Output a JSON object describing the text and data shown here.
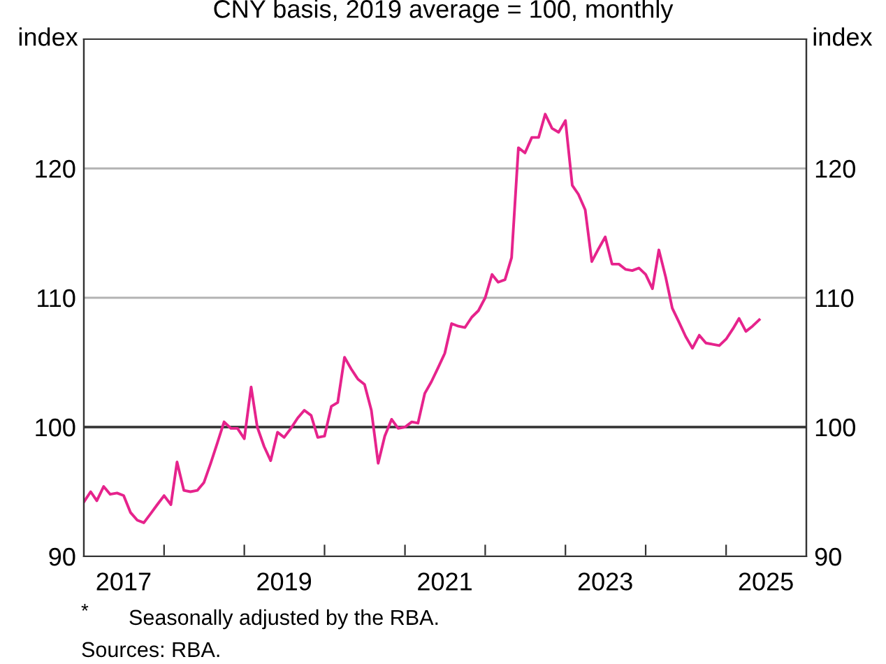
{
  "chart_data": {
    "type": "line",
    "subtitle": "CNY basis, 2019 average = 100, monthly",
    "ylabel": "index",
    "y2label": "index",
    "x": [
      "2017-01",
      "2017-02",
      "2017-03",
      "2017-04",
      "2017-05",
      "2017-06",
      "2017-07",
      "2017-08",
      "2017-09",
      "2017-10",
      "2017-11",
      "2017-12",
      "2018-01",
      "2018-02",
      "2018-03",
      "2018-04",
      "2018-05",
      "2018-06",
      "2018-07",
      "2018-08",
      "2018-09",
      "2018-10",
      "2018-11",
      "2018-12",
      "2019-01",
      "2019-02",
      "2019-03",
      "2019-04",
      "2019-05",
      "2019-06",
      "2019-07",
      "2019-08",
      "2019-09",
      "2019-10",
      "2019-11",
      "2019-12",
      "2020-01",
      "2020-02",
      "2020-03",
      "2020-04",
      "2020-05",
      "2020-06",
      "2020-07",
      "2020-08",
      "2020-09",
      "2020-10",
      "2020-11",
      "2020-12",
      "2021-01",
      "2021-02",
      "2021-03",
      "2021-04",
      "2021-05",
      "2021-06",
      "2021-07",
      "2021-08",
      "2021-09",
      "2021-10",
      "2021-11",
      "2021-12",
      "2022-01",
      "2022-02",
      "2022-03",
      "2022-04",
      "2022-05",
      "2022-06",
      "2022-07",
      "2022-08",
      "2022-09",
      "2022-10",
      "2022-11",
      "2022-12",
      "2023-01",
      "2023-02",
      "2023-03",
      "2023-04",
      "2023-05",
      "2023-06",
      "2023-07",
      "2023-08",
      "2023-09",
      "2023-10",
      "2023-11",
      "2023-12",
      "2024-01",
      "2024-02",
      "2024-03",
      "2024-04",
      "2024-05",
      "2024-06",
      "2024-07",
      "2024-08",
      "2024-09",
      "2024-10",
      "2024-11",
      "2024-12",
      "2025-01",
      "2025-02",
      "2025-03",
      "2025-04",
      "2025-05",
      "2025-06"
    ],
    "series": [
      {
        "color": "#e6238c",
        "values": [
          94.2,
          95.0,
          94.3,
          95.4,
          94.8,
          94.9,
          94.7,
          93.4,
          92.8,
          92.6,
          93.3,
          94.0,
          94.7,
          94.0,
          97.3,
          95.1,
          95.0,
          95.1,
          95.7,
          97.2,
          98.8,
          100.4,
          99.9,
          99.9,
          99.1,
          103.1,
          100.0,
          98.5,
          97.4,
          99.6,
          99.2,
          99.9,
          100.7,
          101.3,
          100.9,
          99.2,
          99.3,
          101.6,
          101.9,
          105.4,
          104.5,
          103.7,
          103.3,
          101.3,
          97.2,
          99.3,
          100.6,
          99.9,
          100.0,
          100.4,
          100.3,
          102.6,
          103.5,
          104.6,
          105.7,
          108.0,
          107.8,
          107.7,
          108.5,
          109.0,
          110.0,
          111.8,
          111.2,
          111.4,
          113.1,
          121.6,
          121.2,
          122.4,
          122.4,
          124.2,
          123.1,
          122.8,
          123.7,
          118.7,
          118.0,
          116.8,
          112.8,
          113.8,
          114.7,
          112.6,
          112.6,
          112.2,
          112.1,
          112.3,
          111.8,
          110.7,
          113.7,
          111.6,
          109.2,
          108.1,
          107.0,
          106.1,
          107.1,
          106.5,
          106.4,
          106.3,
          106.8,
          107.6,
          108.4,
          107.4,
          107.8,
          108.3
        ]
      }
    ],
    "xlim": [
      "2017-01",
      "2026-01"
    ],
    "xticks": [
      {
        "value": "2018-01",
        "label": null
      },
      {
        "value": "2019-01",
        "label": null
      },
      {
        "value": "2020-01",
        "label": null
      },
      {
        "value": "2021-01",
        "label": null
      },
      {
        "value": "2022-01",
        "label": null
      },
      {
        "value": "2023-01",
        "label": null
      },
      {
        "value": "2024-01",
        "label": null
      },
      {
        "value": "2025-01",
        "label": null
      },
      {
        "value": "2017-07",
        "label": "2017"
      },
      {
        "value": "2019-07",
        "label": "2019"
      },
      {
        "value": "2021-07",
        "label": "2021"
      },
      {
        "value": "2023-07",
        "label": "2023"
      },
      {
        "value": "2025-07",
        "label": "2025"
      }
    ],
    "ylim": [
      90,
      130
    ],
    "yticks": [
      90,
      100,
      110,
      120
    ],
    "y2lim": [
      90,
      130
    ],
    "y2ticks": [
      90,
      100,
      110,
      120
    ],
    "ref_lines": [
      {
        "axis": "y",
        "value": 100,
        "color": "#333333"
      }
    ],
    "grid": "y",
    "annotations": [
      "*",
      "Seasonally adjusted by the RBA.",
      "Sources: RBA."
    ]
  }
}
